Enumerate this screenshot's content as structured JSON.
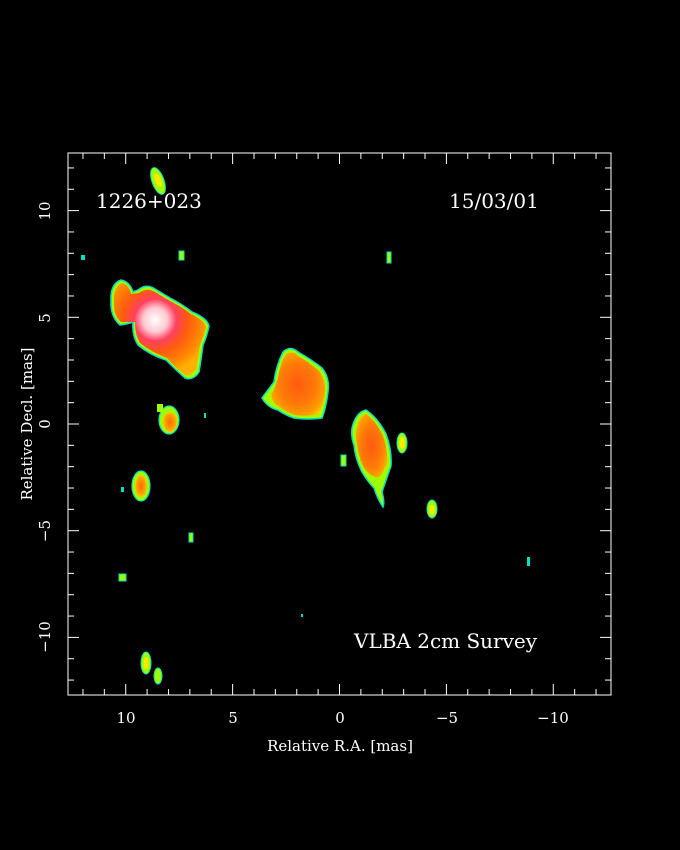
{
  "figure": {
    "source_name": "1226+023",
    "date": "15/03/01",
    "survey": "VLBA 2cm Survey",
    "xlabel": "Relative R.A. [mas]",
    "ylabel": "Relative Decl. [mas]"
  },
  "axes": {
    "x": {
      "ticks": [
        10,
        5,
        0,
        -5,
        -10
      ],
      "tick_labels": [
        "10",
        "5",
        "0",
        "−5",
        "−10"
      ],
      "range": [
        12.7,
        -12.7
      ]
    },
    "y": {
      "ticks": [
        10,
        5,
        0,
        -5,
        -10
      ],
      "tick_labels": [
        "10",
        "5",
        "0",
        "−5",
        "−10"
      ],
      "range": [
        -12.7,
        12.7
      ]
    }
  },
  "colors": {
    "background": "#000000",
    "frame": "#ffffff",
    "colormap": [
      "#00e0c8",
      "#9dff00",
      "#ffe800",
      "#ff9a00",
      "#ff5a10",
      "#ff3040",
      "#ff8fa0",
      "#ffffff"
    ]
  }
}
